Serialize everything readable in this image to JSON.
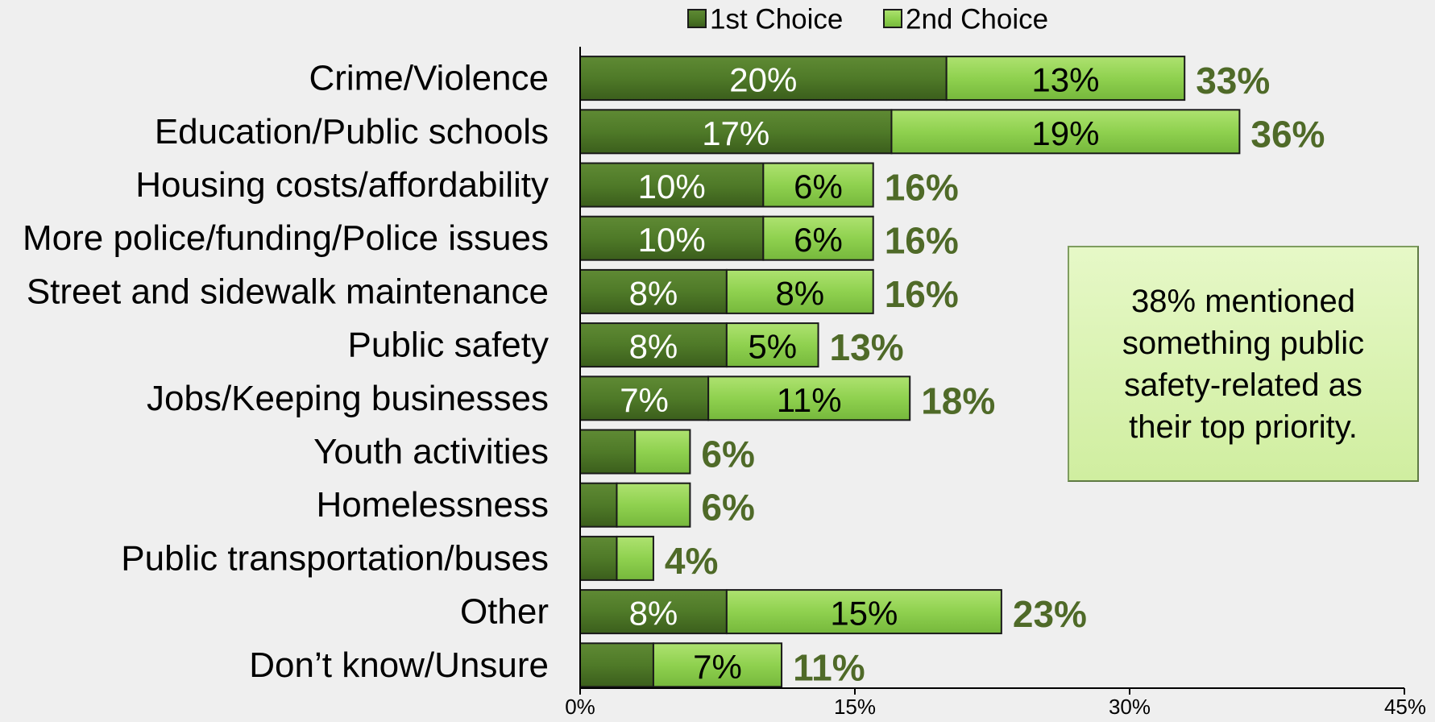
{
  "chart_data": {
    "type": "bar",
    "orientation": "horizontal",
    "stacked": true,
    "categories": [
      "Crime/Violence",
      "Education/Public schools",
      "Housing costs/affordability",
      "More police/funding/Police issues",
      "Street and sidewalk maintenance",
      "Public safety",
      "Jobs/Keeping businesses",
      "Youth activities",
      "Homelessness",
      "Public transportation/buses",
      "Other",
      "Don’t know/Unsure"
    ],
    "series": [
      {
        "name": "1st Choice",
        "color": "#4f7a28",
        "values": [
          20,
          17,
          10,
          10,
          8,
          8,
          7,
          3,
          2,
          2,
          8,
          4
        ],
        "labels": [
          "20%",
          "17%",
          "10%",
          "10%",
          "8%",
          "8%",
          "7%",
          "",
          "",
          "",
          "8%",
          ""
        ]
      },
      {
        "name": "2nd Choice",
        "color": "#8fd14f",
        "values": [
          13,
          19,
          6,
          6,
          8,
          5,
          11,
          3,
          4,
          2,
          15,
          7
        ],
        "labels": [
          "13%",
          "19%",
          "6%",
          "6%",
          "8%",
          "5%",
          "11%",
          "",
          "",
          "",
          "15%",
          "7%"
        ]
      }
    ],
    "totals": [
      "33%",
      "36%",
      "16%",
      "16%",
      "16%",
      "13%",
      "18%",
      "6%",
      "6%",
      "4%",
      "23%",
      "11%"
    ],
    "total_color": "#4f6a28",
    "xlim": [
      0,
      45
    ],
    "xticks": [
      "0%",
      "15%",
      "30%",
      "45%"
    ],
    "grid": false,
    "legend_position": "top"
  },
  "callout": {
    "text": "38% mentioned something public safety-related as their top priority."
  }
}
